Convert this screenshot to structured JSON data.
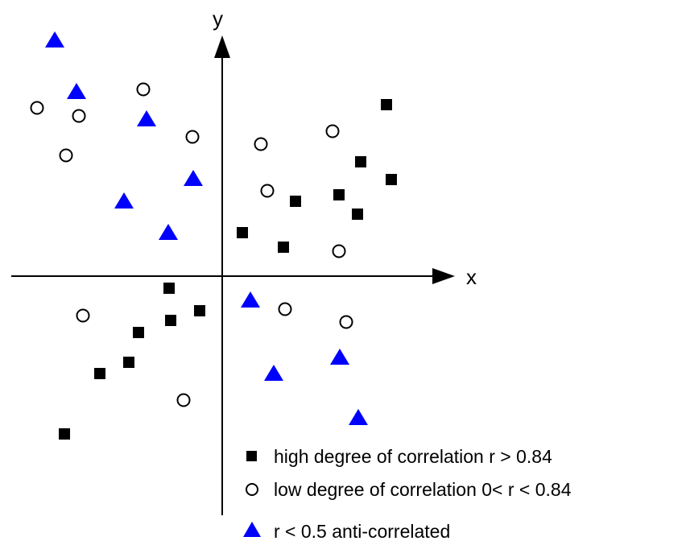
{
  "chart_data": {
    "type": "scatter",
    "xlabel": "x",
    "ylabel": "y",
    "grid": false,
    "legend_placement": "bottom-right",
    "xlim": [
      -262,
      283
    ],
    "ylim": [
      -302,
      292
    ],
    "series": [
      {
        "name": "high degree of correlation r > 0.84",
        "marker": "square",
        "color": "#000000",
        "points": [
          [
            204,
            208
          ],
          [
            172,
            137
          ],
          [
            210,
            115
          ],
          [
            145,
            96
          ],
          [
            168,
            72
          ],
          [
            91,
            88
          ],
          [
            25,
            49
          ],
          [
            76,
            31
          ],
          [
            -66,
            -20
          ],
          [
            -64,
            -60
          ],
          [
            -28,
            -48
          ],
          [
            -104,
            -75
          ],
          [
            -116,
            -112
          ],
          [
            -152,
            -126
          ],
          [
            -196,
            -201
          ]
        ]
      },
      {
        "name": "low degree of correlation 0< r < 0.84",
        "marker": "circle",
        "color": "#000000",
        "points": [
          [
            -230,
            204
          ],
          [
            -178,
            194
          ],
          [
            -98,
            227
          ],
          [
            -37,
            168
          ],
          [
            -194,
            145
          ],
          [
            48,
            159
          ],
          [
            137,
            175
          ],
          [
            56,
            101
          ],
          [
            145,
            26
          ],
          [
            -173,
            -54
          ],
          [
            78,
            -46
          ],
          [
            154,
            -62
          ],
          [
            -48,
            -159
          ]
        ]
      },
      {
        "name": "r < 0.5 anti-correlated",
        "marker": "triangle",
        "color": "#0000ff",
        "points": [
          [
            -208,
            287
          ],
          [
            -181,
            223
          ],
          [
            -94,
            189
          ],
          [
            -36,
            115
          ],
          [
            -122,
            87
          ],
          [
            -67,
            48
          ],
          [
            35,
            -36
          ],
          [
            64,
            -127
          ],
          [
            146,
            -107
          ],
          [
            169,
            -182
          ]
        ]
      }
    ]
  }
}
